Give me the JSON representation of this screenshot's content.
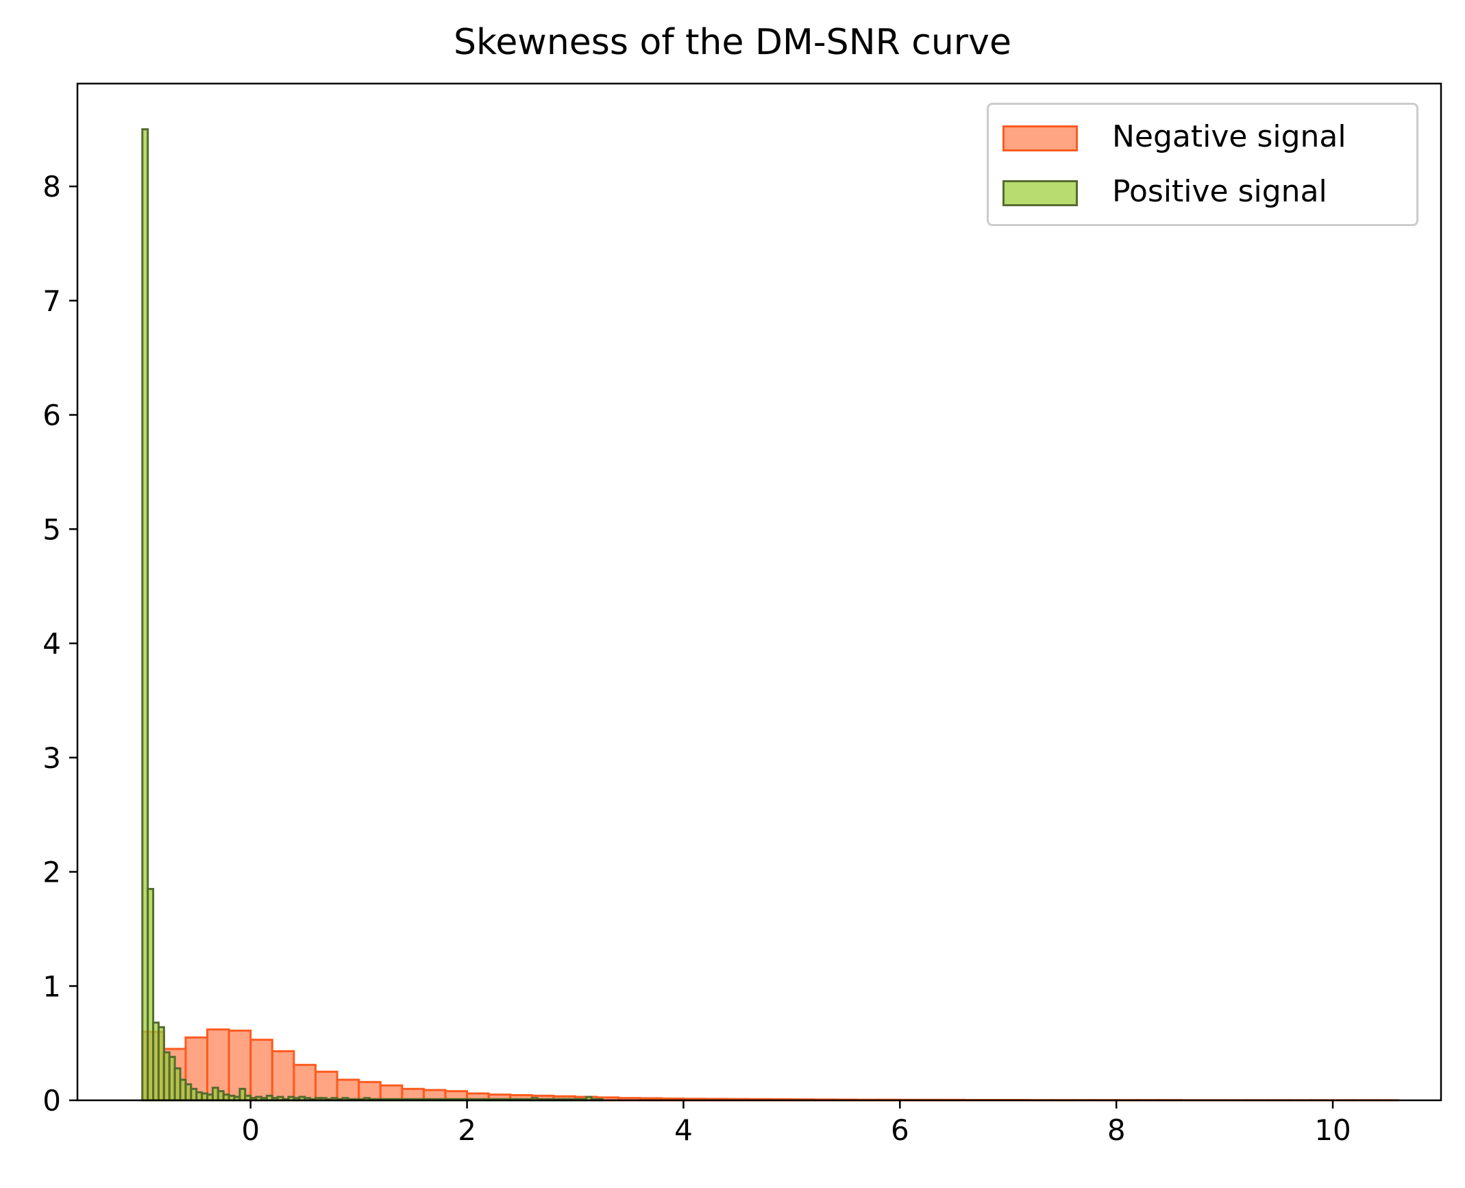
{
  "chart_data": {
    "type": "bar",
    "title": "Skewness of the DM-SNR curve",
    "xlabel": "",
    "ylabel": "",
    "xlim": [
      -1.6,
      11
    ],
    "ylim": [
      0,
      8.9
    ],
    "xticks": [
      0,
      2,
      4,
      6,
      8,
      10
    ],
    "yticks": [
      0,
      1,
      2,
      3,
      4,
      5,
      6,
      7,
      8
    ],
    "grid": false,
    "legend_position": "top-right",
    "series": [
      {
        "name": "Negative signal",
        "fill": "#ff7f50",
        "stroke": "#ff5a1f",
        "bin_width": 0.2,
        "bin_start": -1.0,
        "values": [
          0.6,
          0.45,
          0.55,
          0.62,
          0.61,
          0.53,
          0.43,
          0.31,
          0.25,
          0.18,
          0.16,
          0.13,
          0.1,
          0.09,
          0.08,
          0.06,
          0.05,
          0.045,
          0.04,
          0.035,
          0.03,
          0.025,
          0.02,
          0.018,
          0.015,
          0.013,
          0.012,
          0.011,
          0.01,
          0.009,
          0.008,
          0.007,
          0.006,
          0.005,
          0.005,
          0.004,
          0.004,
          0.004,
          0.003,
          0.003,
          0.003,
          0.002,
          0.002,
          0.002,
          0.002,
          0.002,
          0.002,
          0.002,
          0.001,
          0.001,
          0.001,
          0.001,
          0.001,
          0.001,
          0.001,
          0.001,
          0.001,
          0.001
        ]
      },
      {
        "name": "Positive signal",
        "fill": "#9acd32",
        "stroke": "#556b2f",
        "bin_width": 0.05,
        "bin_start": -1.0,
        "values": [
          8.5,
          1.85,
          0.68,
          0.64,
          0.42,
          0.38,
          0.28,
          0.18,
          0.14,
          0.1,
          0.07,
          0.06,
          0.05,
          0.11,
          0.08,
          0.05,
          0.04,
          0.03,
          0.1,
          0.04,
          0.02,
          0.03,
          0.02,
          0.04,
          0.02,
          0.03,
          0.01,
          0.03,
          0.02,
          0.03,
          0.02,
          0.01,
          0.02,
          0.02,
          0.01,
          0.02,
          0.01,
          0.02,
          0.01,
          0.01,
          0.01,
          0.02,
          0.01,
          0.01,
          0.01,
          0.01,
          0.01,
          0.01,
          0.01,
          0.01,
          0.01,
          0.01,
          0.01,
          0.01,
          0.01,
          0.01,
          0.01,
          0.01,
          0.01,
          0.01,
          0.01,
          0.01,
          0.01,
          0.01,
          0.01,
          0.01,
          0.01,
          0.01,
          0.01,
          0.01,
          0.01,
          0.01,
          0.02,
          0.01,
          0.01,
          0.01,
          0.01,
          0.01,
          0.01,
          0.01,
          0.01,
          0.01,
          0.03,
          0.01,
          0.01
        ]
      }
    ]
  },
  "legend": {
    "items": [
      {
        "label": "Negative signal",
        "fill": "#ff7f50",
        "stroke": "#ff5a1f"
      },
      {
        "label": "Positive signal",
        "fill": "#9acd32",
        "stroke": "#556b2f"
      }
    ]
  }
}
